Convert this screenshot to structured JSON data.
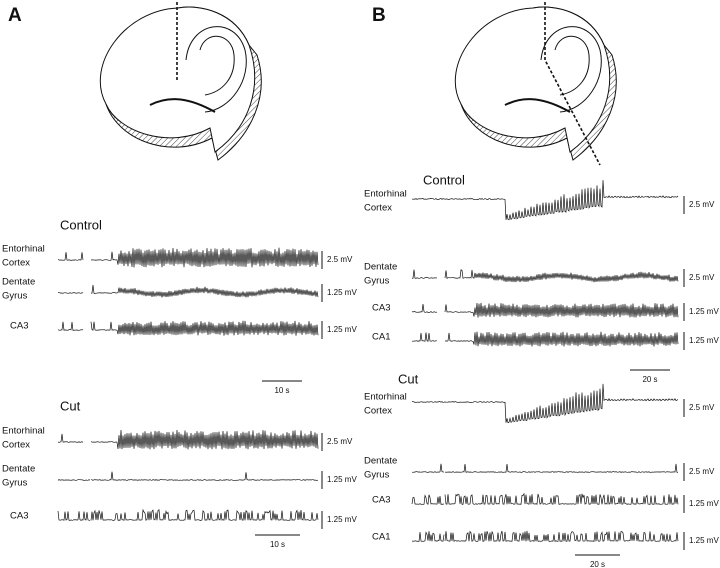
{
  "panels": [
    {
      "label": "A",
      "conditions": [
        {
          "title": "Control",
          "traces": [
            {
              "region": [
                "Entorhinal",
                "Cortex"
              ],
              "scale": "2.5 mV"
            },
            {
              "region": [
                "Dentate",
                "Gyrus"
              ],
              "scale": "1.25 mV"
            },
            {
              "region": [
                "CA3"
              ],
              "scale": "1.25 mV"
            }
          ],
          "time_scale": "10 s"
        },
        {
          "title": "Cut",
          "traces": [
            {
              "region": [
                "Entorhinal",
                "Cortex"
              ],
              "scale": "2.5 mV"
            },
            {
              "region": [
                "Dentate",
                "Gyrus"
              ],
              "scale": "1.25 mV"
            },
            {
              "region": [
                "CA3"
              ],
              "scale": "1.25 mV"
            }
          ],
          "time_scale": "10 s"
        }
      ]
    },
    {
      "label": "B",
      "conditions": [
        {
          "title": "Control",
          "traces": [
            {
              "region": [
                "Entorhinal",
                "Cortex"
              ],
              "scale": "2.5 mV"
            },
            {
              "region": [
                "Dentate",
                "Gyrus"
              ],
              "scale": "2.5 mV"
            },
            {
              "region": [
                "CA3"
              ],
              "scale": "1.25 mV"
            },
            {
              "region": [
                "CA1"
              ],
              "scale": "1.25 mV"
            }
          ],
          "time_scale": "20 s"
        },
        {
          "title": "Cut",
          "traces": [
            {
              "region": [
                "Entorhinal",
                "Cortex"
              ],
              "scale": "2.5 mV"
            },
            {
              "region": [
                "Dentate",
                "Gyrus"
              ],
              "scale": "2.5 mV"
            },
            {
              "region": [
                "CA3"
              ],
              "scale": "1.25 mV"
            },
            {
              "region": [
                "CA1"
              ],
              "scale": "1.25 mV"
            }
          ],
          "time_scale": "20 s"
        }
      ]
    }
  ]
}
